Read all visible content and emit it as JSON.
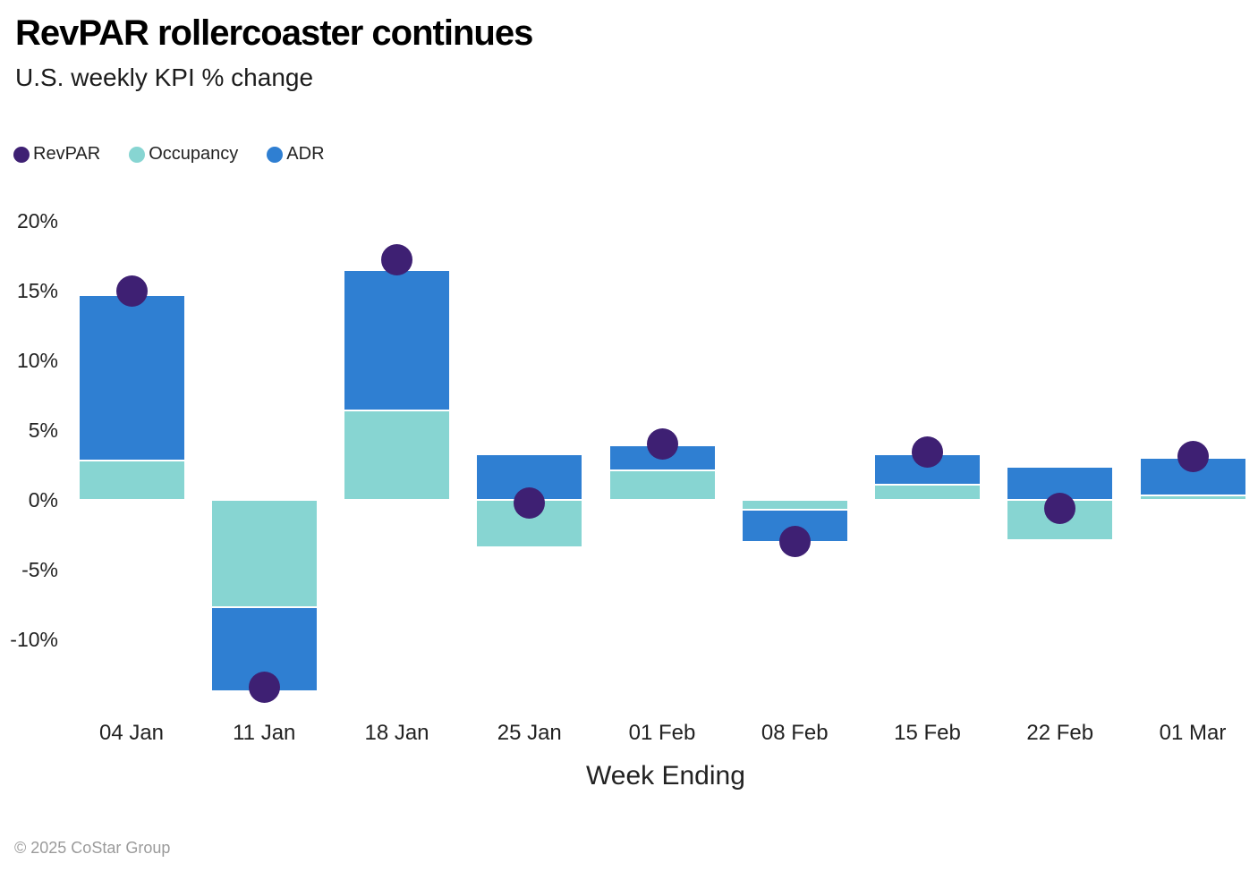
{
  "header": {
    "title": "RevPAR rollercoaster continues",
    "subtitle": "U.S. weekly KPI % change"
  },
  "chart_data": {
    "type": "bar",
    "variant": "stacked-columns-with-point-overlay",
    "title": "RevPAR rollercoaster continues",
    "subtitle": "U.S. weekly KPI % change",
    "xlabel": "Week Ending",
    "ylabel": "",
    "unit": "% change",
    "categories": [
      "04 Jan",
      "11 Jan",
      "18 Jan",
      "25 Jan",
      "01 Feb",
      "08 Feb",
      "15 Feb",
      "22 Feb",
      "01 Mar"
    ],
    "series": [
      {
        "name": "RevPAR",
        "render": "point",
        "color": "#3E2073",
        "values": [
          15.0,
          -13.4,
          17.2,
          -0.2,
          4.0,
          -3.0,
          3.4,
          -0.6,
          3.1
        ]
      },
      {
        "name": "Occupancy",
        "render": "bar",
        "color": "#87D5D2",
        "values": [
          2.8,
          -7.7,
          6.4,
          -3.4,
          2.1,
          -0.7,
          1.1,
          -2.9,
          0.3
        ]
      },
      {
        "name": "ADR",
        "render": "bar",
        "color": "#2F7FD2",
        "values": [
          11.9,
          -6.0,
          10.1,
          3.3,
          1.8,
          -2.3,
          2.2,
          2.4,
          2.7
        ]
      }
    ],
    "y_ticks": [
      {
        "label": "20%",
        "value": 20
      },
      {
        "label": "15%",
        "value": 15
      },
      {
        "label": "10%",
        "value": 10
      },
      {
        "label": "5%",
        "value": 5
      },
      {
        "label": "0%",
        "value": 0
      },
      {
        "label": "-5%",
        "value": -5
      },
      {
        "label": "-10%",
        "value": -10
      }
    ],
    "ylim": [
      -15.5,
      21
    ],
    "grid": false,
    "axis_lines": false,
    "legend_position": "top-left",
    "stack_order": [
      "Occupancy",
      "ADR"
    ]
  },
  "footer": {
    "copyright": "© 2025 CoStar Group"
  }
}
